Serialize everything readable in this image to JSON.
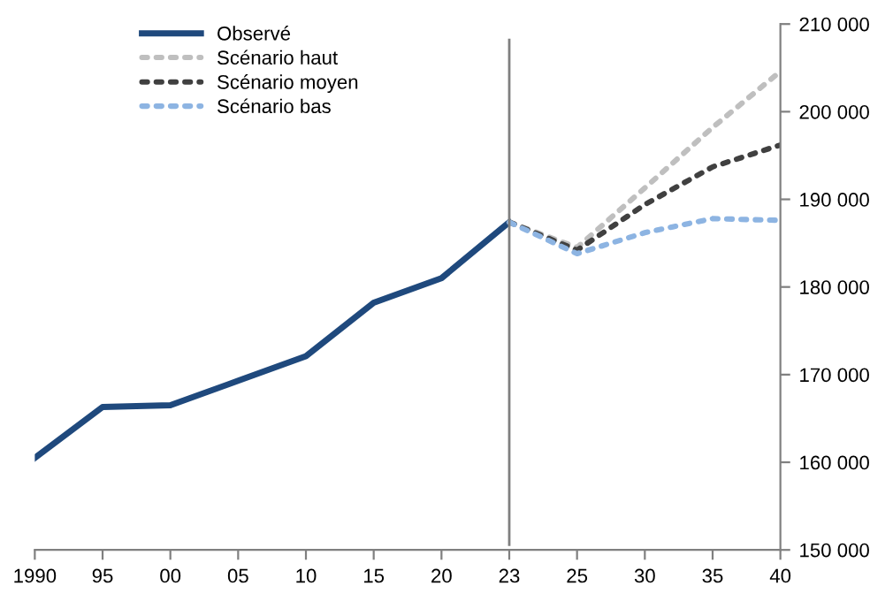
{
  "chart_data": {
    "type": "line",
    "categories": [
      "1990",
      "95",
      "00",
      "05",
      "10",
      "15",
      "20",
      "23",
      "25",
      "30",
      "35",
      "40"
    ],
    "series": [
      {
        "name": "Observé",
        "color": "#1f497d",
        "line_style": "solid",
        "values": [
          160500,
          166300,
          166500,
          169300,
          172100,
          178200,
          181000,
          187400,
          null,
          null,
          null,
          null
        ]
      },
      {
        "name": "Scénario haut",
        "color": "#bfbfbf",
        "line_style": "dotted",
        "values": [
          null,
          null,
          null,
          null,
          null,
          null,
          null,
          187400,
          184500,
          191300,
          198200,
          204600
        ]
      },
      {
        "name": "Scénario moyen",
        "color": "#404040",
        "line_style": "dotted",
        "values": [
          null,
          null,
          null,
          null,
          null,
          null,
          null,
          187400,
          184200,
          189400,
          193700,
          196200
        ]
      },
      {
        "name": "Scénario bas",
        "color": "#8db4e2",
        "line_style": "dotted",
        "values": [
          null,
          null,
          null,
          null,
          null,
          null,
          null,
          187400,
          183800,
          186200,
          187800,
          187600
        ]
      }
    ],
    "ylim": [
      150000,
      210000
    ],
    "yticks": [
      {
        "value": 150000,
        "label": "150 000"
      },
      {
        "value": 160000,
        "label": "160 000"
      },
      {
        "value": 170000,
        "label": "170 000"
      },
      {
        "value": 180000,
        "label": "180 000"
      },
      {
        "value": 190000,
        "label": "190 000"
      },
      {
        "value": 200000,
        "label": "200 000"
      },
      {
        "value": 210000,
        "label": "210 000"
      }
    ],
    "ref_lines": [
      {
        "axis": "x",
        "value": "23",
        "color": "#7f7f7f"
      }
    ],
    "grid": false,
    "legend": "top left",
    "marker": "none"
  }
}
